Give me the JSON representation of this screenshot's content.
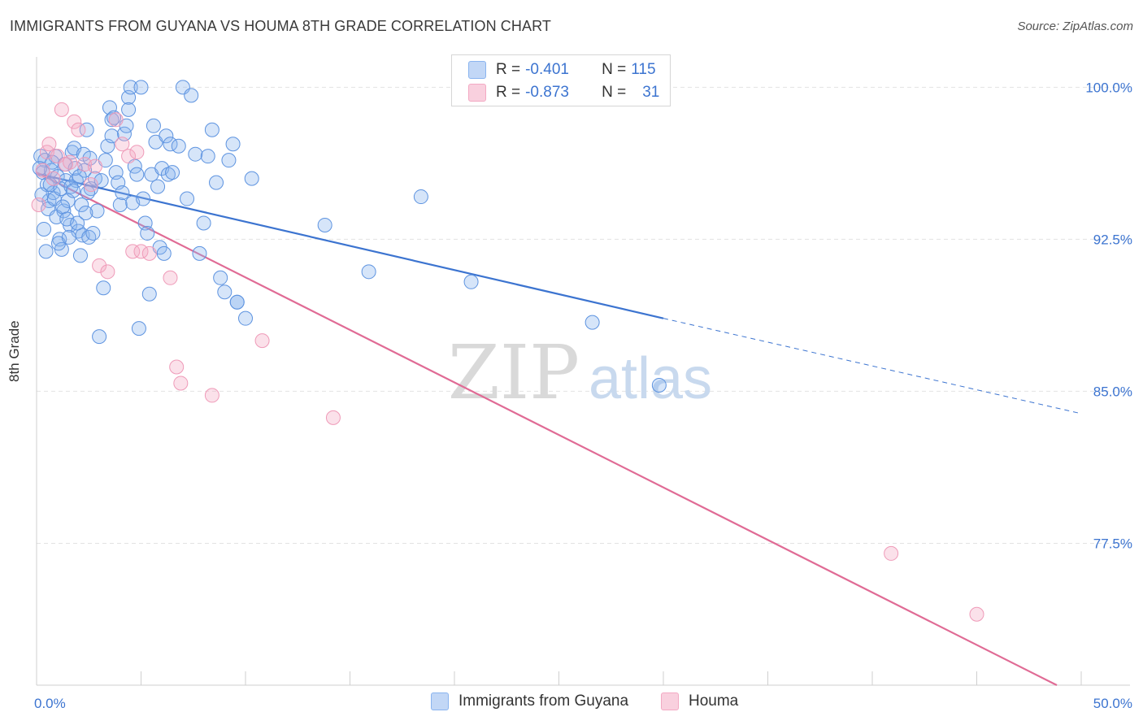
{
  "header": {
    "title": "IMMIGRANTS FROM GUYANA VS HOUMA 8TH GRADE CORRELATION CHART",
    "source": "Source: ZipAtlas.com"
  },
  "watermark": {
    "zip": "ZIP",
    "atlas": "atlas"
  },
  "legend": {
    "series1": {
      "r_label": "R = ",
      "r_value": "-0.401",
      "n_label": "N = ",
      "n_value": "115",
      "color": "#8ab4ef"
    },
    "series2": {
      "r_label": "R = ",
      "r_value": "-0.873",
      "n_label": "N = ",
      "n_value": "31",
      "color": "#f3a9c3"
    }
  },
  "colors": {
    "blue": "#3c74d0",
    "blue_fill": "#8ab4ef",
    "pink": "#e06b95",
    "pink_fill": "#f3a9c3",
    "grid": "#e2e2e2",
    "axis_text": "#3c74d0"
  },
  "chart_data": {
    "type": "scatter",
    "title": "IMMIGRANTS FROM GUYANA VS HOUMA 8TH GRADE CORRELATION CHART",
    "xlabel": "",
    "ylabel": "8th Grade",
    "xlim": [
      0,
      50
    ],
    "ylim": [
      70.5,
      101.5
    ],
    "x_tick_labels": [
      "0.0%",
      "50.0%"
    ],
    "y_ticks": [
      100.0,
      92.5,
      85.0,
      77.5
    ],
    "y_tick_labels": [
      "100.0%",
      "92.5%",
      "85.0%",
      "77.5%"
    ],
    "grid": true,
    "legend_position": "top-center",
    "series": [
      {
        "name": "Immigrants from Guyana",
        "color": "#3c74d0",
        "trend": {
          "x_start": 0.0,
          "y_start": 95.75,
          "x_solid_end": 30.0,
          "y_solid_end": 88.6,
          "x_end": 50.0,
          "y_end": 83.9
        },
        "points": [
          [
            0.2,
            96.6
          ],
          [
            0.3,
            95.8
          ],
          [
            0.4,
            96.4
          ],
          [
            0.5,
            95.2
          ],
          [
            0.6,
            94.4
          ],
          [
            0.7,
            95.9
          ],
          [
            0.8,
            94.8
          ],
          [
            0.9,
            96.6
          ],
          [
            1.0,
            95.6
          ],
          [
            1.1,
            92.5
          ],
          [
            1.2,
            92.0
          ],
          [
            1.3,
            93.9
          ],
          [
            1.4,
            95.4
          ],
          [
            1.5,
            94.4
          ],
          [
            1.6,
            93.2
          ],
          [
            1.7,
            96.8
          ],
          [
            1.8,
            97.0
          ],
          [
            1.9,
            95.4
          ],
          [
            2.0,
            92.9
          ],
          [
            2.1,
            91.7
          ],
          [
            2.2,
            92.7
          ],
          [
            2.3,
            95.9
          ],
          [
            2.4,
            97.9
          ],
          [
            2.5,
            92.6
          ],
          [
            2.6,
            95.0
          ],
          [
            2.7,
            92.8
          ],
          [
            2.8,
            95.5
          ],
          [
            2.9,
            93.9
          ],
          [
            3.0,
            87.7
          ],
          [
            3.1,
            95.4
          ],
          [
            3.2,
            90.1
          ],
          [
            3.3,
            96.4
          ],
          [
            3.4,
            97.1
          ],
          [
            3.5,
            99.0
          ],
          [
            3.6,
            98.4
          ],
          [
            3.7,
            98.5
          ],
          [
            3.8,
            95.8
          ],
          [
            3.9,
            95.3
          ],
          [
            4.0,
            94.2
          ],
          [
            4.1,
            94.8
          ],
          [
            4.2,
            97.7
          ],
          [
            4.3,
            98.1
          ],
          [
            4.4,
            99.5
          ],
          [
            4.5,
            100.0
          ],
          [
            4.6,
            94.3
          ],
          [
            4.7,
            96.1
          ],
          [
            4.8,
            95.7
          ],
          [
            4.9,
            88.1
          ],
          [
            5.0,
            100.0
          ],
          [
            5.1,
            94.5
          ],
          [
            5.2,
            93.3
          ],
          [
            5.3,
            92.8
          ],
          [
            5.4,
            89.8
          ],
          [
            5.5,
            95.7
          ],
          [
            5.6,
            98.1
          ],
          [
            5.7,
            97.3
          ],
          [
            5.8,
            95.1
          ],
          [
            5.9,
            92.1
          ],
          [
            6.0,
            96.0
          ],
          [
            6.1,
            91.8
          ],
          [
            6.2,
            97.6
          ],
          [
            6.3,
            95.7
          ],
          [
            6.4,
            97.2
          ],
          [
            6.5,
            95.8
          ],
          [
            7.0,
            100.0
          ],
          [
            7.2,
            94.5
          ],
          [
            7.4,
            99.6
          ],
          [
            7.6,
            96.7
          ],
          [
            7.8,
            91.8
          ],
          [
            8.0,
            93.3
          ],
          [
            8.2,
            96.6
          ],
          [
            8.4,
            97.9
          ],
          [
            8.6,
            95.3
          ],
          [
            8.8,
            90.6
          ],
          [
            9.0,
            89.9
          ],
          [
            9.2,
            96.4
          ],
          [
            9.4,
            97.2
          ],
          [
            9.6,
            89.4
          ],
          [
            10.0,
            88.6
          ],
          [
            10.3,
            95.5
          ],
          [
            0.15,
            96.0
          ],
          [
            0.25,
            94.7
          ],
          [
            0.35,
            93.0
          ],
          [
            0.45,
            91.9
          ],
          [
            0.55,
            94.0
          ],
          [
            0.65,
            95.2
          ],
          [
            0.75,
            96.3
          ],
          [
            0.85,
            94.5
          ],
          [
            0.95,
            93.6
          ],
          [
            1.05,
            92.3
          ],
          [
            1.15,
            95.0
          ],
          [
            1.25,
            94.1
          ],
          [
            1.35,
            96.2
          ],
          [
            1.45,
            93.5
          ],
          [
            1.55,
            92.6
          ],
          [
            1.65,
            95.1
          ],
          [
            1.75,
            94.9
          ],
          [
            1.85,
            96.0
          ],
          [
            1.95,
            93.3
          ],
          [
            2.05,
            95.6
          ],
          [
            2.15,
            94.2
          ],
          [
            2.25,
            96.7
          ],
          [
            2.35,
            93.8
          ],
          [
            2.45,
            94.8
          ],
          [
            2.55,
            96.5
          ],
          [
            13.8,
            93.2
          ],
          [
            15.9,
            90.9
          ],
          [
            18.4,
            94.6
          ],
          [
            20.8,
            90.4
          ],
          [
            26.6,
            88.4
          ],
          [
            29.8,
            85.3
          ],
          [
            4.4,
            98.9
          ],
          [
            6.8,
            97.1
          ],
          [
            9.6,
            89.4
          ],
          [
            3.6,
            97.6
          ]
        ]
      },
      {
        "name": "Houma",
        "color": "#e06b95",
        "trend": {
          "x_start": 0.0,
          "y_start": 95.8,
          "x_end": 50.0,
          "y_end": 70.5
        },
        "points": [
          [
            0.1,
            94.2
          ],
          [
            0.3,
            95.9
          ],
          [
            0.5,
            96.8
          ],
          [
            0.6,
            97.2
          ],
          [
            0.8,
            95.5
          ],
          [
            1.0,
            96.6
          ],
          [
            1.2,
            98.9
          ],
          [
            1.4,
            96.2
          ],
          [
            1.6,
            96.3
          ],
          [
            1.8,
            98.3
          ],
          [
            2.0,
            97.9
          ],
          [
            2.3,
            96.2
          ],
          [
            2.6,
            95.2
          ],
          [
            3.0,
            91.2
          ],
          [
            3.4,
            90.9
          ],
          [
            3.8,
            98.4
          ],
          [
            4.1,
            97.2
          ],
          [
            4.4,
            96.6
          ],
          [
            4.6,
            91.9
          ],
          [
            5.0,
            91.9
          ],
          [
            5.4,
            91.8
          ],
          [
            6.4,
            90.6
          ],
          [
            6.7,
            86.2
          ],
          [
            6.9,
            85.4
          ],
          [
            8.4,
            84.8
          ],
          [
            10.8,
            87.5
          ],
          [
            14.2,
            83.7
          ],
          [
            40.9,
            77.0
          ],
          [
            45.0,
            74.0
          ],
          [
            2.8,
            96.1
          ],
          [
            4.8,
            96.8
          ]
        ]
      }
    ]
  },
  "bottom_legend": {
    "item1": "Immigrants from Guyana",
    "item2": "Houma"
  }
}
